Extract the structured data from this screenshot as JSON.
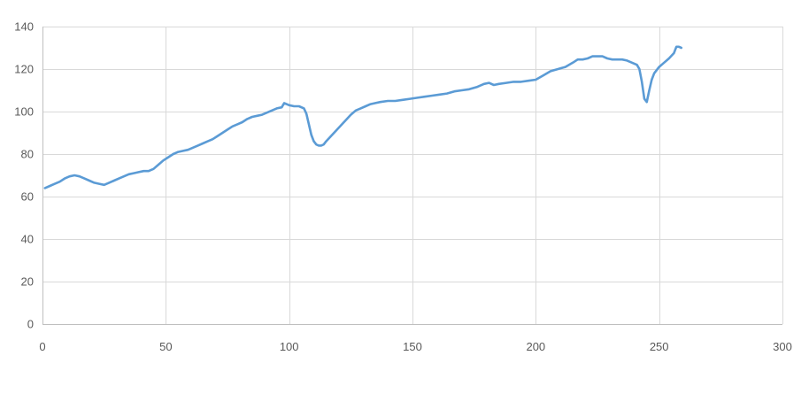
{
  "chart_data": {
    "type": "line",
    "title": "",
    "xlabel": "",
    "ylabel": "",
    "xlim": [
      0,
      300
    ],
    "ylim": [
      0,
      140
    ],
    "x_ticks": [
      0,
      50,
      100,
      150,
      200,
      250,
      300
    ],
    "y_ticks": [
      0,
      20,
      40,
      60,
      80,
      100,
      120,
      140
    ],
    "grid": true,
    "legend": "none",
    "colors": {
      "series": "#5b9bd5",
      "grid": "#d9d9d9",
      "text": "#595959"
    },
    "series": [
      {
        "points": [
          [
            1,
            64
          ],
          [
            3,
            65
          ],
          [
            5,
            66
          ],
          [
            7,
            67
          ],
          [
            9,
            68.5
          ],
          [
            11,
            69.5
          ],
          [
            13,
            70
          ],
          [
            15,
            69.5
          ],
          [
            17,
            68.5
          ],
          [
            19,
            67.5
          ],
          [
            21,
            66.5
          ],
          [
            23,
            66
          ],
          [
            25,
            65.5
          ],
          [
            27,
            66.5
          ],
          [
            29,
            67.5
          ],
          [
            31,
            68.5
          ],
          [
            33,
            69.5
          ],
          [
            35,
            70.5
          ],
          [
            37,
            71
          ],
          [
            39,
            71.5
          ],
          [
            41,
            72
          ],
          [
            43,
            72
          ],
          [
            45,
            73
          ],
          [
            47,
            75
          ],
          [
            49,
            77
          ],
          [
            51,
            78.5
          ],
          [
            53,
            80
          ],
          [
            55,
            81
          ],
          [
            57,
            81.5
          ],
          [
            59,
            82
          ],
          [
            61,
            83
          ],
          [
            63,
            84
          ],
          [
            65,
            85
          ],
          [
            67,
            86
          ],
          [
            69,
            87
          ],
          [
            71,
            88.5
          ],
          [
            73,
            90
          ],
          [
            75,
            91.5
          ],
          [
            77,
            93
          ],
          [
            79,
            94
          ],
          [
            81,
            95
          ],
          [
            83,
            96.5
          ],
          [
            85,
            97.5
          ],
          [
            87,
            98
          ],
          [
            89,
            98.5
          ],
          [
            91,
            99.5
          ],
          [
            93,
            100.5
          ],
          [
            95,
            101.5
          ],
          [
            97,
            102
          ],
          [
            98,
            104
          ],
          [
            100,
            103
          ],
          [
            102,
            102.5
          ],
          [
            104,
            102.5
          ],
          [
            106,
            101.5
          ],
          [
            107,
            99
          ],
          [
            108,
            94
          ],
          [
            109,
            89
          ],
          [
            110,
            86
          ],
          [
            111,
            84.5
          ],
          [
            112,
            84
          ],
          [
            113,
            84
          ],
          [
            114,
            84.5
          ],
          [
            115,
            86
          ],
          [
            117,
            88.5
          ],
          [
            119,
            91
          ],
          [
            121,
            93.5
          ],
          [
            123,
            96
          ],
          [
            125,
            98.5
          ],
          [
            127,
            100.5
          ],
          [
            129,
            101.5
          ],
          [
            131,
            102.5
          ],
          [
            133,
            103.5
          ],
          [
            135,
            104
          ],
          [
            137,
            104.5
          ],
          [
            140,
            105
          ],
          [
            143,
            105
          ],
          [
            146,
            105.5
          ],
          [
            149,
            106
          ],
          [
            152,
            106.5
          ],
          [
            155,
            107
          ],
          [
            158,
            107.5
          ],
          [
            161,
            108
          ],
          [
            164,
            108.5
          ],
          [
            167,
            109.5
          ],
          [
            170,
            110
          ],
          [
            173,
            110.5
          ],
          [
            176,
            111.5
          ],
          [
            179,
            113
          ],
          [
            181,
            113.5
          ],
          [
            183,
            112.5
          ],
          [
            185,
            113
          ],
          [
            188,
            113.5
          ],
          [
            191,
            114
          ],
          [
            194,
            114
          ],
          [
            197,
            114.5
          ],
          [
            200,
            115
          ],
          [
            203,
            117
          ],
          [
            206,
            119
          ],
          [
            209,
            120
          ],
          [
            212,
            121
          ],
          [
            215,
            123
          ],
          [
            217,
            124.5
          ],
          [
            219,
            124.5
          ],
          [
            221,
            125
          ],
          [
            223,
            126
          ],
          [
            225,
            126
          ],
          [
            227,
            126
          ],
          [
            229,
            125
          ],
          [
            231,
            124.5
          ],
          [
            233,
            124.5
          ],
          [
            235,
            124.5
          ],
          [
            237,
            124
          ],
          [
            239,
            123
          ],
          [
            241,
            122
          ],
          [
            242,
            120
          ],
          [
            243,
            114
          ],
          [
            244,
            106
          ],
          [
            245,
            104.5
          ],
          [
            246,
            110
          ],
          [
            247,
            115
          ],
          [
            248,
            118
          ],
          [
            250,
            121
          ],
          [
            252,
            123
          ],
          [
            254,
            125
          ],
          [
            256,
            127.5
          ],
          [
            257,
            130.5
          ],
          [
            258,
            130.5
          ],
          [
            259,
            130
          ]
        ]
      }
    ]
  }
}
